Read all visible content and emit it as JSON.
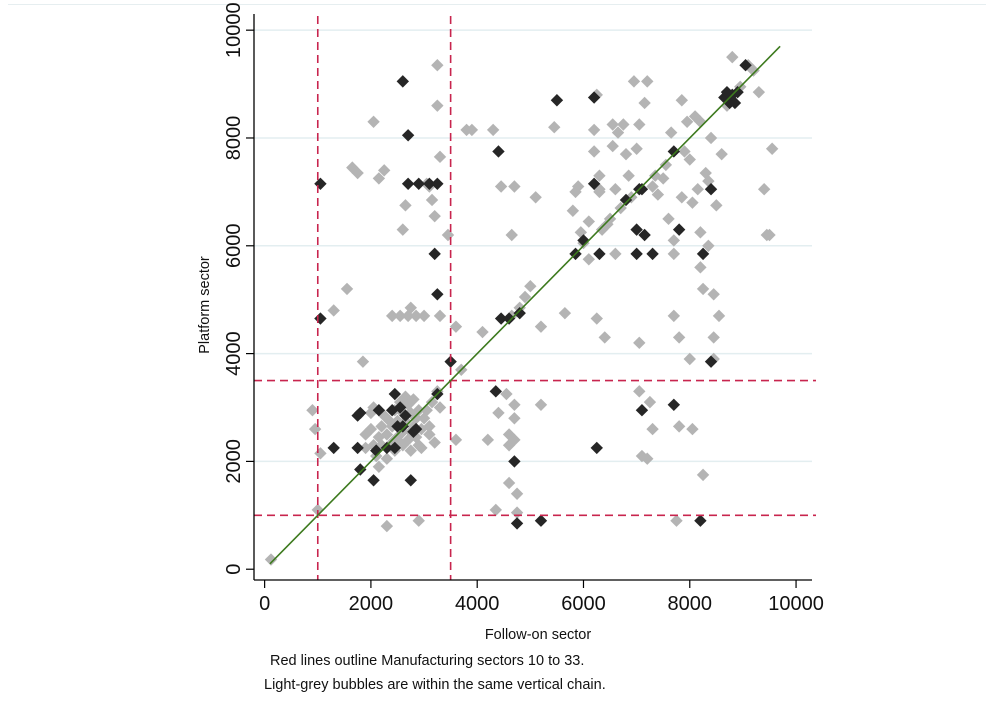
{
  "chart_data": {
    "type": "scatter",
    "xlabel": "Follow-on sector",
    "ylabel": "Platform sector",
    "xlim": [
      -200,
      10300
    ],
    "ylim": [
      -200,
      10300
    ],
    "x_ticks": [
      0,
      2000,
      4000,
      6000,
      8000,
      10000
    ],
    "y_ticks": [
      0,
      2000,
      4000,
      6000,
      8000,
      10000
    ],
    "grid": "horizontal",
    "notes": [
      "Red lines outline Manufacturing sectors 10 to 33.",
      "Light-grey bubbles are within the same vertical chain."
    ],
    "reference_lines": {
      "vertical": [
        1000,
        3500
      ],
      "horizontal": [
        1000,
        3500
      ],
      "color": "#c8254e",
      "style": "dashed"
    },
    "fit_line": {
      "x": [
        100,
        9700
      ],
      "y": [
        100,
        9700
      ],
      "color": "#3d7a1e"
    },
    "colors": {
      "same_chain": "#b4b4b4",
      "other": "#262626"
    },
    "series": [
      {
        "marker_color": "#b4b4b4",
        "points": [
          [
            120,
            180
          ],
          [
            900,
            2950
          ],
          [
            950,
            2600
          ],
          [
            1000,
            1100
          ],
          [
            1050,
            2150
          ],
          [
            1300,
            4800
          ],
          [
            1550,
            5200
          ],
          [
            1650,
            7450
          ],
          [
            1750,
            7350
          ],
          [
            1850,
            3850
          ],
          [
            2050,
            8300
          ],
          [
            2150,
            7250
          ],
          [
            2250,
            7400
          ],
          [
            2300,
            800
          ],
          [
            2400,
            4700
          ],
          [
            2550,
            4700
          ],
          [
            2600,
            6300
          ],
          [
            2650,
            6750
          ],
          [
            2700,
            4700
          ],
          [
            2750,
            4850
          ],
          [
            2850,
            4700
          ],
          [
            2900,
            900
          ],
          [
            3000,
            4700
          ],
          [
            3050,
            7150
          ],
          [
            3100,
            7100
          ],
          [
            3150,
            6850
          ],
          [
            3200,
            6550
          ],
          [
            3250,
            9350
          ],
          [
            3250,
            8600
          ],
          [
            3300,
            7650
          ],
          [
            3300,
            4700
          ],
          [
            3450,
            6200
          ],
          [
            3600,
            2400
          ],
          [
            3600,
            4500
          ],
          [
            3700,
            3700
          ],
          [
            3800,
            8150
          ],
          [
            3900,
            8150
          ],
          [
            4100,
            4400
          ],
          [
            4200,
            2400
          ],
          [
            4300,
            8150
          ],
          [
            4350,
            1100
          ],
          [
            4400,
            2900
          ],
          [
            4450,
            7100
          ],
          [
            4550,
            3250
          ],
          [
            4600,
            2500
          ],
          [
            4600,
            2300
          ],
          [
            4600,
            1600
          ],
          [
            4650,
            4700
          ],
          [
            4650,
            6200
          ],
          [
            4700,
            2800
          ],
          [
            4700,
            2400
          ],
          [
            4700,
            3050
          ],
          [
            4700,
            7100
          ],
          [
            4750,
            1400
          ],
          [
            4750,
            1050
          ],
          [
            4800,
            4850
          ],
          [
            4900,
            5050
          ],
          [
            5000,
            5250
          ],
          [
            5100,
            6900
          ],
          [
            5200,
            4500
          ],
          [
            5200,
            3050
          ],
          [
            5450,
            8200
          ],
          [
            5650,
            4750
          ],
          [
            5800,
            6650
          ],
          [
            5850,
            7000
          ],
          [
            5900,
            7100
          ],
          [
            5950,
            6250
          ],
          [
            6000,
            6050
          ],
          [
            6100,
            5750
          ],
          [
            6100,
            6450
          ],
          [
            6200,
            7750
          ],
          [
            6200,
            8150
          ],
          [
            6250,
            8800
          ],
          [
            6250,
            4650
          ],
          [
            6300,
            7300
          ],
          [
            6300,
            7050
          ],
          [
            6300,
            7000
          ],
          [
            6350,
            6300
          ],
          [
            6400,
            4300
          ],
          [
            6450,
            6400
          ],
          [
            6500,
            6500
          ],
          [
            6550,
            7850
          ],
          [
            6550,
            8250
          ],
          [
            6600,
            5850
          ],
          [
            6600,
            7050
          ],
          [
            6650,
            8100
          ],
          [
            6700,
            6700
          ],
          [
            6750,
            8250
          ],
          [
            6800,
            7700
          ],
          [
            6850,
            7300
          ],
          [
            6900,
            6900
          ],
          [
            6950,
            9050
          ],
          [
            7000,
            7800
          ],
          [
            7050,
            8250
          ],
          [
            7050,
            4200
          ],
          [
            7050,
            3300
          ],
          [
            7100,
            2100
          ],
          [
            7150,
            8650
          ],
          [
            7200,
            9050
          ],
          [
            7200,
            2050
          ],
          [
            7250,
            3100
          ],
          [
            7300,
            7100
          ],
          [
            7300,
            2600
          ],
          [
            7350,
            7300
          ],
          [
            7400,
            6950
          ],
          [
            7500,
            7250
          ],
          [
            7550,
            7500
          ],
          [
            7600,
            6500
          ],
          [
            7650,
            8100
          ],
          [
            7700,
            6100
          ],
          [
            7700,
            5850
          ],
          [
            7700,
            4700
          ],
          [
            7750,
            900
          ],
          [
            7800,
            4300
          ],
          [
            7800,
            2650
          ],
          [
            7850,
            6900
          ],
          [
            7850,
            8700
          ],
          [
            7900,
            7750
          ],
          [
            7950,
            8300
          ],
          [
            8000,
            7600
          ],
          [
            8000,
            3900
          ],
          [
            8050,
            6800
          ],
          [
            8050,
            2600
          ],
          [
            8100,
            8400
          ],
          [
            8150,
            7050
          ],
          [
            8200,
            6250
          ],
          [
            8200,
            5600
          ],
          [
            8200,
            8300
          ],
          [
            8250,
            5200
          ],
          [
            8250,
            1750
          ],
          [
            8300,
            7350
          ],
          [
            8350,
            6000
          ],
          [
            8350,
            7200
          ],
          [
            8400,
            8000
          ],
          [
            8450,
            5100
          ],
          [
            8450,
            4300
          ],
          [
            8450,
            3900
          ],
          [
            8500,
            6750
          ],
          [
            8550,
            4700
          ],
          [
            8600,
            7700
          ],
          [
            8700,
            8600
          ],
          [
            8800,
            9500
          ],
          [
            8950,
            8950
          ],
          [
            9100,
            9350
          ],
          [
            9200,
            9250
          ],
          [
            9300,
            8850
          ],
          [
            9400,
            7050
          ],
          [
            9450,
            6200
          ],
          [
            9500,
            6200
          ],
          [
            9550,
            7800
          ],
          [
            1900,
            2250
          ],
          [
            2000,
            2600
          ],
          [
            2050,
            2300
          ],
          [
            2100,
            2100
          ],
          [
            2150,
            2450
          ],
          [
            2200,
            2650
          ],
          [
            2200,
            2300
          ],
          [
            2250,
            2850
          ],
          [
            2300,
            2500
          ],
          [
            2350,
            2750
          ],
          [
            2350,
            2300
          ],
          [
            2400,
            2650
          ],
          [
            2450,
            2950
          ],
          [
            2450,
            2400
          ],
          [
            2500,
            2450
          ],
          [
            2500,
            2750
          ],
          [
            2550,
            3100
          ],
          [
            2550,
            2350
          ],
          [
            2600,
            2900
          ],
          [
            2600,
            2550
          ],
          [
            2650,
            3200
          ],
          [
            2650,
            2750
          ],
          [
            2700,
            2400
          ],
          [
            2700,
            3050
          ],
          [
            2750,
            2550
          ],
          [
            2750,
            2900
          ],
          [
            2800,
            3150
          ],
          [
            2800,
            2650
          ],
          [
            2850,
            2450
          ],
          [
            2850,
            2800
          ],
          [
            2900,
            2950
          ],
          [
            2900,
            2300
          ],
          [
            2950,
            2600
          ],
          [
            3000,
            2800
          ],
          [
            3050,
            2950
          ],
          [
            3100,
            2650
          ],
          [
            3150,
            3100
          ],
          [
            3200,
            2350
          ],
          [
            3250,
            3300
          ],
          [
            3300,
            3000
          ],
          [
            2150,
            1900
          ],
          [
            2300,
            2050
          ],
          [
            2450,
            2200
          ],
          [
            2600,
            2300
          ],
          [
            2750,
            2200
          ],
          [
            2950,
            2250
          ],
          [
            3100,
            2500
          ],
          [
            2000,
            2900
          ],
          [
            2050,
            3000
          ],
          [
            1900,
            2500
          ]
        ]
      },
      {
        "marker_color": "#262626",
        "points": [
          [
            1050,
            7150
          ],
          [
            1050,
            4650
          ],
          [
            1300,
            2250
          ],
          [
            1750,
            2850
          ],
          [
            1750,
            2250
          ],
          [
            1800,
            2900
          ],
          [
            1800,
            1850
          ],
          [
            2050,
            1650
          ],
          [
            2100,
            2200
          ],
          [
            2150,
            2950
          ],
          [
            2300,
            2250
          ],
          [
            2400,
            2950
          ],
          [
            2450,
            3250
          ],
          [
            2450,
            2250
          ],
          [
            2500,
            2650
          ],
          [
            2550,
            3000
          ],
          [
            2600,
            2650
          ],
          [
            2600,
            9050
          ],
          [
            2650,
            2850
          ],
          [
            2700,
            8050
          ],
          [
            2700,
            7150
          ],
          [
            2750,
            1650
          ],
          [
            2800,
            2550
          ],
          [
            2850,
            2600
          ],
          [
            2900,
            7150
          ],
          [
            3100,
            7150
          ],
          [
            3200,
            5850
          ],
          [
            3250,
            5100
          ],
          [
            3250,
            3250
          ],
          [
            3250,
            7150
          ],
          [
            3500,
            3850
          ],
          [
            4350,
            3300
          ],
          [
            4400,
            7750
          ],
          [
            4450,
            4650
          ],
          [
            4600,
            4650
          ],
          [
            4700,
            2000
          ],
          [
            4750,
            850
          ],
          [
            4800,
            4750
          ],
          [
            5200,
            900
          ],
          [
            5500,
            8700
          ],
          [
            5850,
            5850
          ],
          [
            6000,
            6100
          ],
          [
            6200,
            8750
          ],
          [
            6200,
            7150
          ],
          [
            6250,
            2250
          ],
          [
            6300,
            5850
          ],
          [
            6800,
            6850
          ],
          [
            7000,
            5850
          ],
          [
            7000,
            6300
          ],
          [
            7050,
            7050
          ],
          [
            7100,
            7050
          ],
          [
            7100,
            2950
          ],
          [
            7150,
            6200
          ],
          [
            7300,
            5850
          ],
          [
            7700,
            7750
          ],
          [
            7700,
            3050
          ],
          [
            7800,
            6300
          ],
          [
            8200,
            900
          ],
          [
            8250,
            5850
          ],
          [
            8400,
            3850
          ],
          [
            8400,
            7050
          ],
          [
            8750,
            8650
          ],
          [
            8800,
            8800
          ],
          [
            8850,
            8650
          ],
          [
            8900,
            8850
          ],
          [
            9050,
            9350
          ],
          [
            8650,
            8750
          ],
          [
            8700,
            8850
          ]
        ]
      }
    ]
  }
}
